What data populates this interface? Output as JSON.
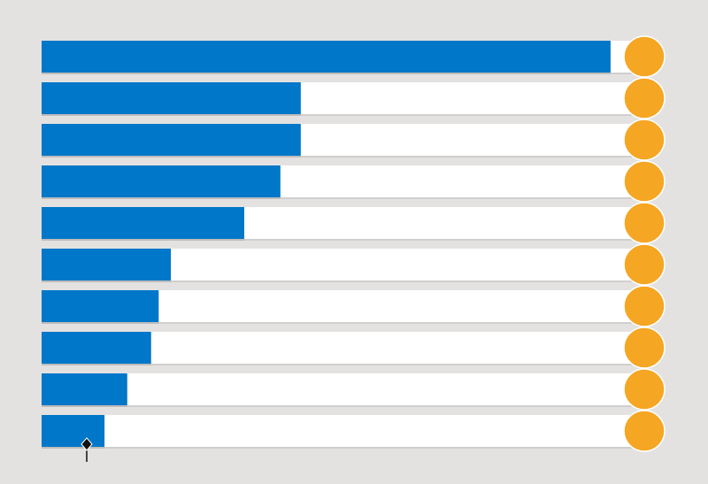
{
  "chart_data": {
    "type": "bar",
    "orientation": "horizontal",
    "values": [
      97.7,
      44.5,
      44.5,
      41.0,
      34.8,
      22.2,
      20.1,
      18.8,
      14.7,
      10.8
    ],
    "color": "#0077c8",
    "xlim": [
      0,
      100
    ]
  }
}
